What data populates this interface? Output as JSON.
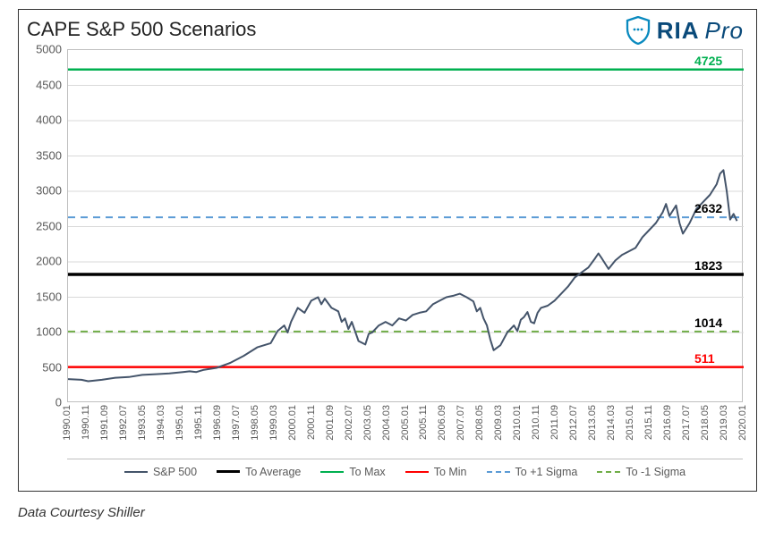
{
  "chart": {
    "title": "CAPE S&P 500 Scenarios",
    "caption": "Data Courtesy Shiller",
    "type": "line",
    "background_color": "#ffffff",
    "border_color": "#333333",
    "grid_color": "#d9d9d9",
    "axis_font_color": "#595959",
    "title_fontsize": 22,
    "axis_fontsize": 13,
    "ylim": [
      0,
      5000
    ],
    "ytick_step": 500,
    "yticks": [
      0,
      500,
      1000,
      1500,
      2000,
      2500,
      3000,
      3500,
      4000,
      4500,
      5000
    ],
    "xticks": [
      "1990.01",
      "1990.11",
      "1991.09",
      "1992.07",
      "1993.05",
      "1994.03",
      "1995.01",
      "1995.11",
      "1996.09",
      "1997.07",
      "1998.05",
      "1999.03",
      "2000.01",
      "2000.11",
      "2001.09",
      "2002.07",
      "2003.05",
      "2004.03",
      "2005.01",
      "2005.11",
      "2006.09",
      "2007.07",
      "2008.05",
      "2009.03",
      "2010.01",
      "2010.11",
      "2011.09",
      "2012.07",
      "2013.05",
      "2014.03",
      "2015.01",
      "2015.11",
      "2016.09",
      "2017.07",
      "2018.05",
      "2019.03",
      "2020.01"
    ],
    "reference_lines": [
      {
        "name": "To Max",
        "value": 4725,
        "label": "4725",
        "color": "#00b050",
        "width": 2.5,
        "dash": "solid",
        "label_color": "#00b050"
      },
      {
        "name": "To +1 Sigma",
        "value": 2632,
        "label": "2632",
        "color": "#5b9bd5",
        "width": 2,
        "dash": "8 6",
        "label_color": "#000000"
      },
      {
        "name": "To Average",
        "value": 1823,
        "label": "1823",
        "color": "#000000",
        "width": 3.5,
        "dash": "solid",
        "label_color": "#000000"
      },
      {
        "name": "To -1 Sigma",
        "value": 1014,
        "label": "1014",
        "color": "#70ad47",
        "width": 2,
        "dash": "8 6",
        "label_color": "#000000"
      },
      {
        "name": "To Min",
        "value": 511,
        "label": "511",
        "color": "#ff0000",
        "width": 2.5,
        "dash": "solid",
        "label_color": "#ff0000"
      }
    ],
    "series": {
      "name": "S&P 500",
      "color": "#44546a",
      "width": 2,
      "points": [
        [
          0.0,
          340
        ],
        [
          0.02,
          330
        ],
        [
          0.03,
          310
        ],
        [
          0.05,
          330
        ],
        [
          0.07,
          360
        ],
        [
          0.09,
          370
        ],
        [
          0.11,
          400
        ],
        [
          0.13,
          410
        ],
        [
          0.15,
          420
        ],
        [
          0.17,
          440
        ],
        [
          0.18,
          450
        ],
        [
          0.19,
          440
        ],
        [
          0.2,
          470
        ],
        [
          0.22,
          500
        ],
        [
          0.24,
          570
        ],
        [
          0.26,
          670
        ],
        [
          0.28,
          790
        ],
        [
          0.3,
          850
        ],
        [
          0.31,
          1020
        ],
        [
          0.32,
          1100
        ],
        [
          0.325,
          1000
        ],
        [
          0.33,
          1150
        ],
        [
          0.34,
          1350
        ],
        [
          0.35,
          1280
        ],
        [
          0.36,
          1450
        ],
        [
          0.37,
          1500
        ],
        [
          0.375,
          1400
        ],
        [
          0.38,
          1480
        ],
        [
          0.39,
          1350
        ],
        [
          0.4,
          1300
        ],
        [
          0.405,
          1150
        ],
        [
          0.41,
          1200
        ],
        [
          0.415,
          1050
        ],
        [
          0.42,
          1150
        ],
        [
          0.43,
          880
        ],
        [
          0.44,
          830
        ],
        [
          0.445,
          980
        ],
        [
          0.45,
          1000
        ],
        [
          0.46,
          1100
        ],
        [
          0.47,
          1150
        ],
        [
          0.48,
          1100
        ],
        [
          0.49,
          1200
        ],
        [
          0.5,
          1170
        ],
        [
          0.51,
          1250
        ],
        [
          0.52,
          1280
        ],
        [
          0.53,
          1300
        ],
        [
          0.54,
          1400
        ],
        [
          0.55,
          1450
        ],
        [
          0.56,
          1500
        ],
        [
          0.57,
          1520
        ],
        [
          0.58,
          1550
        ],
        [
          0.59,
          1500
        ],
        [
          0.6,
          1440
        ],
        [
          0.605,
          1300
        ],
        [
          0.61,
          1350
        ],
        [
          0.615,
          1200
        ],
        [
          0.62,
          1100
        ],
        [
          0.625,
          900
        ],
        [
          0.63,
          750
        ],
        [
          0.64,
          820
        ],
        [
          0.65,
          1000
        ],
        [
          0.655,
          1050
        ],
        [
          0.66,
          1100
        ],
        [
          0.665,
          1020
        ],
        [
          0.67,
          1180
        ],
        [
          0.675,
          1220
        ],
        [
          0.68,
          1290
        ],
        [
          0.685,
          1150
        ],
        [
          0.69,
          1130
        ],
        [
          0.695,
          1280
        ],
        [
          0.7,
          1350
        ],
        [
          0.71,
          1380
        ],
        [
          0.72,
          1450
        ],
        [
          0.73,
          1550
        ],
        [
          0.74,
          1650
        ],
        [
          0.75,
          1780
        ],
        [
          0.76,
          1850
        ],
        [
          0.77,
          1920
        ],
        [
          0.78,
          2050
        ],
        [
          0.785,
          2120
        ],
        [
          0.79,
          2050
        ],
        [
          0.8,
          1900
        ],
        [
          0.81,
          2020
        ],
        [
          0.82,
          2100
        ],
        [
          0.83,
          2150
        ],
        [
          0.84,
          2200
        ],
        [
          0.85,
          2350
        ],
        [
          0.86,
          2450
        ],
        [
          0.87,
          2550
        ],
        [
          0.88,
          2700
        ],
        [
          0.885,
          2820
        ],
        [
          0.89,
          2650
        ],
        [
          0.9,
          2800
        ],
        [
          0.905,
          2550
        ],
        [
          0.91,
          2400
        ],
        [
          0.92,
          2550
        ],
        [
          0.93,
          2750
        ],
        [
          0.94,
          2850
        ],
        [
          0.95,
          2950
        ],
        [
          0.96,
          3100
        ],
        [
          0.965,
          3250
        ],
        [
          0.97,
          3300
        ],
        [
          0.975,
          3000
        ],
        [
          0.98,
          2600
        ],
        [
          0.985,
          2680
        ],
        [
          0.99,
          2580
        ]
      ]
    },
    "legend": [
      {
        "label": "S&P 500",
        "color": "#44546a",
        "width": 2,
        "dash": "solid"
      },
      {
        "label": "To Average",
        "color": "#000000",
        "width": 3.5,
        "dash": "solid"
      },
      {
        "label": "To Max",
        "color": "#00b050",
        "width": 2.5,
        "dash": "solid"
      },
      {
        "label": "To Min",
        "color": "#ff0000",
        "width": 2.5,
        "dash": "solid"
      },
      {
        "label": "To +1 Sigma",
        "color": "#5b9bd5",
        "width": 2,
        "dash": "6 5"
      },
      {
        "label": "To -1 Sigma",
        "color": "#70ad47",
        "width": 2,
        "dash": "6 5"
      }
    ]
  },
  "logo": {
    "ria_text": "RIA",
    "pro_text": "Pro",
    "shield_color": "#0a8abf",
    "text_color": "#0a4a7a"
  }
}
